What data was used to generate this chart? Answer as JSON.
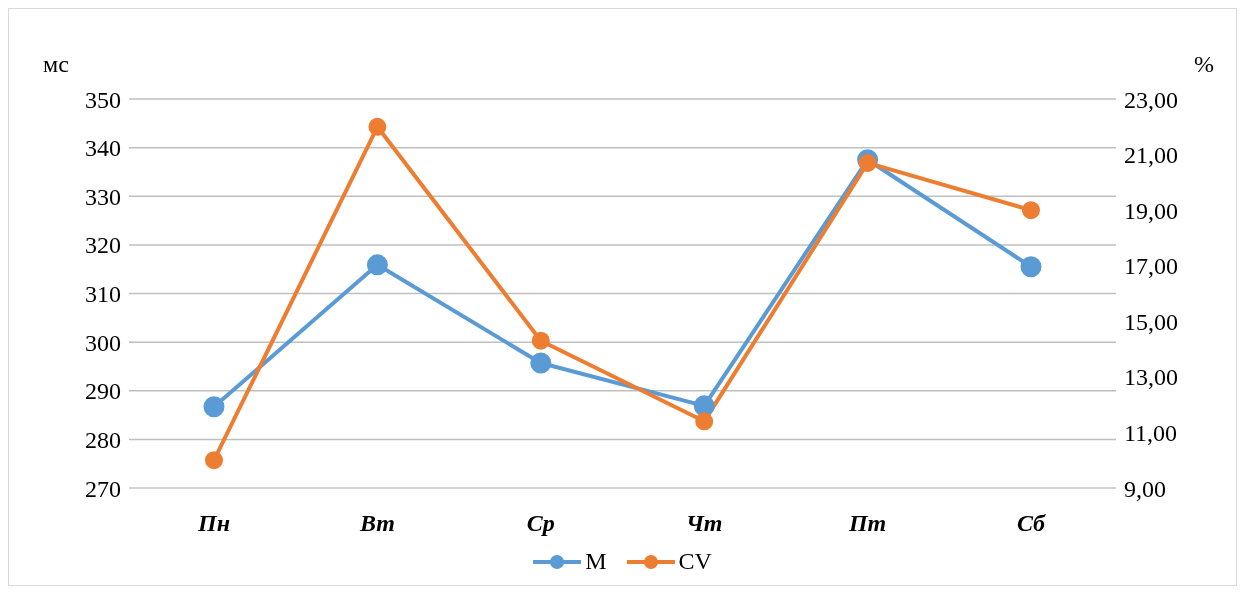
{
  "chart_data": {
    "type": "line",
    "ylabel": "мс",
    "y2label": "%",
    "categories": [
      "Пн",
      "Вт",
      "Ср",
      "Чт",
      "Пт",
      "Сб"
    ],
    "series": [
      {
        "name": "M",
        "color": "#5b9bd5",
        "values": [
          286.7,
          315.9,
          295.7,
          286.9,
          337.5,
          315.5
        ]
      },
      {
        "name": "CV",
        "color": "#ed7d31",
        "values": [
          10.0,
          22.0,
          14.3,
          11.4,
          20.7,
          19.0
        ],
        "axis": "y2"
      }
    ],
    "ylim": [
      270,
      350
    ],
    "yticks": [
      270,
      280,
      290,
      300,
      310,
      320,
      330,
      340,
      350
    ],
    "y2lim": [
      9,
      23
    ],
    "y2ticks": [
      {
        "value": 9,
        "label": "9,00"
      },
      {
        "value": 11,
        "label": "11,00"
      },
      {
        "value": 13,
        "label": "13,00"
      },
      {
        "value": 15,
        "label": "15,00"
      },
      {
        "value": 17,
        "label": "17,00"
      },
      {
        "value": 19,
        "label": "19,00"
      },
      {
        "value": 21,
        "label": "21,00"
      },
      {
        "value": 23,
        "label": "23,00"
      }
    ],
    "grid": "y",
    "legend": "bottom",
    "marker": "circle",
    "line_style": "solid"
  }
}
